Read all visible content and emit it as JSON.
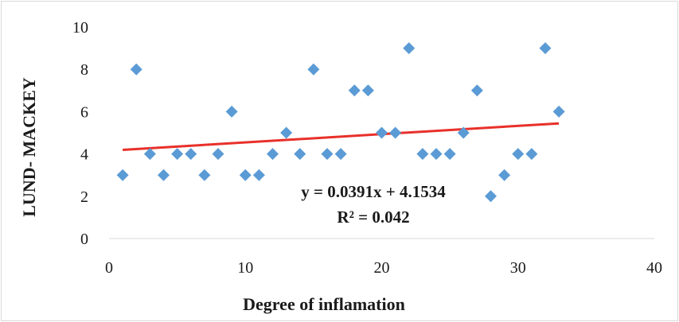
{
  "chart_data": {
    "type": "scatter",
    "xlabel": "Degree of inflamation",
    "ylabel": "LUND- MACKEY",
    "xlim": [
      0,
      40
    ],
    "ylim": [
      0,
      10
    ],
    "x_ticks": [
      "0",
      "10",
      "20",
      "30",
      "40"
    ],
    "y_ticks": [
      "0",
      "2",
      "4",
      "6",
      "8",
      "10"
    ],
    "grid": false,
    "legend": "none",
    "series": [
      {
        "x": [
          1,
          2,
          3,
          4,
          5,
          6,
          7,
          8,
          9,
          10,
          11,
          12,
          13,
          14,
          15,
          16,
          17,
          18,
          19,
          20,
          21,
          22,
          23,
          24,
          25,
          26,
          27,
          28,
          29,
          30,
          31,
          32,
          33
        ],
        "y": [
          3,
          8,
          4,
          3,
          4,
          4,
          3,
          4,
          6,
          3,
          3,
          4,
          5,
          4,
          8,
          4,
          4,
          7,
          7,
          5,
          5,
          9,
          4,
          4,
          4,
          5,
          7,
          2,
          3,
          4,
          4,
          9,
          6
        ],
        "marker": "diamond",
        "color": "#5b9bd5"
      }
    ],
    "trendline": {
      "slope": 0.0391,
      "intercept": 4.1534,
      "x_range": [
        1,
        33
      ],
      "color": "#e8302a",
      "equation": "y = 0.0391x + 4.1534",
      "r_squared": "R² = 0.042"
    }
  }
}
